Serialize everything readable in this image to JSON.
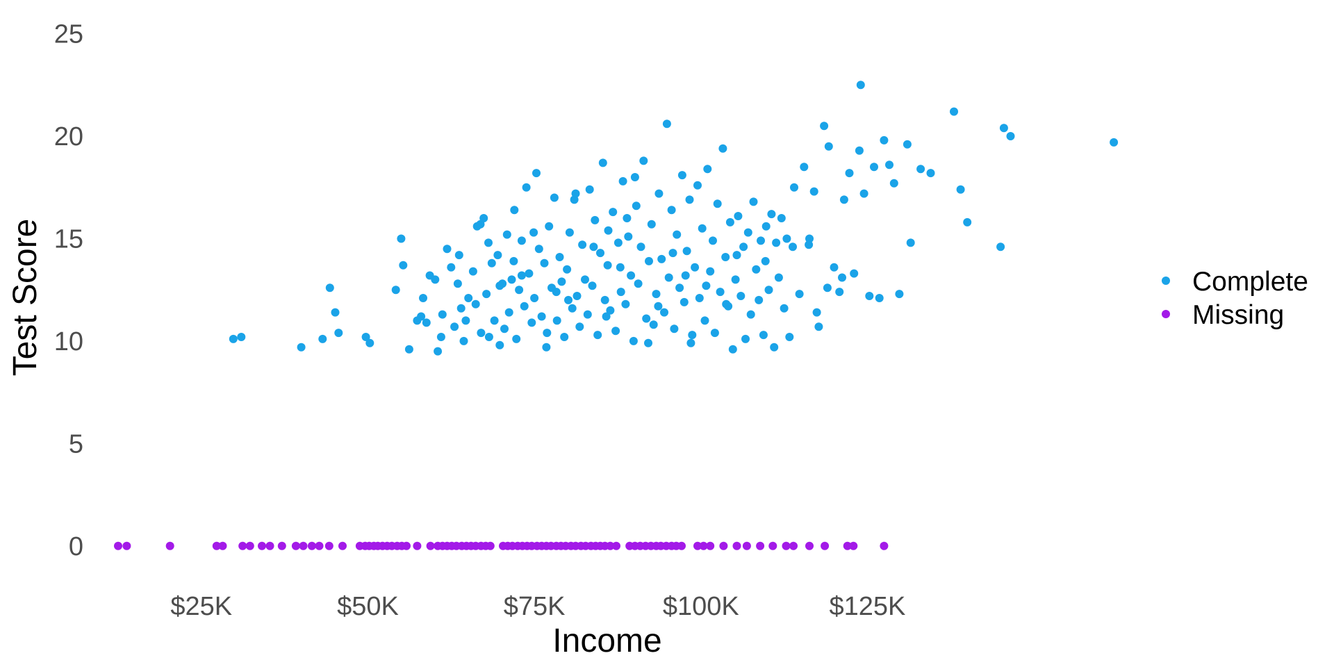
{
  "chart_data": {
    "type": "scatter",
    "title": "",
    "xlabel": "Income",
    "ylabel": "Test Score",
    "xlim": [
      10000,
      155000
    ],
    "ylim": [
      -1.5,
      25.8
    ],
    "x_ticks": [
      {
        "value": 25000,
        "label": "$25K"
      },
      {
        "value": 50000,
        "label": "$50K"
      },
      {
        "value": 75000,
        "label": "$75K"
      },
      {
        "value": 100000,
        "label": "$100K"
      },
      {
        "value": 125000,
        "label": "$125K"
      }
    ],
    "y_ticks": [
      {
        "value": 0,
        "label": "0"
      },
      {
        "value": 5,
        "label": "5"
      },
      {
        "value": 10,
        "label": "10"
      },
      {
        "value": 15,
        "label": "15"
      },
      {
        "value": 20,
        "label": "20"
      },
      {
        "value": 25,
        "label": "25"
      }
    ],
    "grid": false,
    "legend_position": "right",
    "series": [
      {
        "name": "Complete",
        "color": "#1aa3e8",
        "points": [
          [
            29800,
            10.1
          ],
          [
            31000,
            10.2
          ],
          [
            40000,
            9.7
          ],
          [
            43200,
            10.1
          ],
          [
            45600,
            10.4
          ],
          [
            44300,
            12.6
          ],
          [
            45100,
            11.4
          ],
          [
            49700,
            10.2
          ],
          [
            50300,
            9.9
          ],
          [
            54200,
            12.5
          ],
          [
            55000,
            15.0
          ],
          [
            55300,
            13.7
          ],
          [
            58000,
            11.2
          ],
          [
            58800,
            10.9
          ],
          [
            59300,
            13.2
          ],
          [
            60500,
            9.5
          ],
          [
            61200,
            11.3
          ],
          [
            61900,
            14.5
          ],
          [
            62500,
            13.6
          ],
          [
            63000,
            10.7
          ],
          [
            63500,
            12.8
          ],
          [
            63700,
            14.2
          ],
          [
            64000,
            11.6
          ],
          [
            64400,
            10.0
          ],
          [
            65100,
            12.1
          ],
          [
            65800,
            13.4
          ],
          [
            66200,
            11.8
          ],
          [
            66900,
            15.7
          ],
          [
            67000,
            10.4
          ],
          [
            67400,
            16.0
          ],
          [
            67800,
            12.3
          ],
          [
            68200,
            10.2
          ],
          [
            68600,
            13.8
          ],
          [
            69000,
            11.0
          ],
          [
            69500,
            14.2
          ],
          [
            69800,
            9.8
          ],
          [
            70200,
            12.8
          ],
          [
            70500,
            10.6
          ],
          [
            70900,
            15.2
          ],
          [
            71200,
            11.4
          ],
          [
            71600,
            13.0
          ],
          [
            72000,
            16.4
          ],
          [
            72300,
            10.1
          ],
          [
            72700,
            12.5
          ],
          [
            73100,
            14.9
          ],
          [
            73500,
            11.7
          ],
          [
            73800,
            17.5
          ],
          [
            74200,
            13.3
          ],
          [
            74600,
            10.9
          ],
          [
            75000,
            12.1
          ],
          [
            75300,
            18.2
          ],
          [
            75700,
            14.5
          ],
          [
            76100,
            11.2
          ],
          [
            76500,
            13.8
          ],
          [
            76900,
            10.4
          ],
          [
            77200,
            15.6
          ],
          [
            77600,
            12.6
          ],
          [
            78000,
            17.0
          ],
          [
            78400,
            11.0
          ],
          [
            78800,
            14.1
          ],
          [
            79100,
            12.9
          ],
          [
            79500,
            10.2
          ],
          [
            79900,
            13.5
          ],
          [
            80300,
            15.3
          ],
          [
            80700,
            11.6
          ],
          [
            81000,
            16.9
          ],
          [
            81400,
            12.2
          ],
          [
            81800,
            10.7
          ],
          [
            82200,
            14.7
          ],
          [
            82600,
            13.0
          ],
          [
            83000,
            11.3
          ],
          [
            83300,
            17.4
          ],
          [
            83700,
            12.7
          ],
          [
            84100,
            15.9
          ],
          [
            84500,
            10.3
          ],
          [
            84900,
            14.3
          ],
          [
            85300,
            18.7
          ],
          [
            85600,
            12.0
          ],
          [
            86000,
            13.7
          ],
          [
            86400,
            11.5
          ],
          [
            86800,
            16.3
          ],
          [
            87200,
            10.5
          ],
          [
            87600,
            14.8
          ],
          [
            88000,
            12.4
          ],
          [
            88300,
            17.8
          ],
          [
            88700,
            11.8
          ],
          [
            89100,
            15.1
          ],
          [
            89500,
            13.2
          ],
          [
            89900,
            10.0
          ],
          [
            90300,
            16.6
          ],
          [
            90600,
            12.8
          ],
          [
            91000,
            14.6
          ],
          [
            91400,
            18.8
          ],
          [
            91800,
            11.1
          ],
          [
            92200,
            13.9
          ],
          [
            92600,
            15.7
          ],
          [
            92900,
            10.8
          ],
          [
            93300,
            12.3
          ],
          [
            93700,
            17.2
          ],
          [
            94100,
            14.0
          ],
          [
            94500,
            11.4
          ],
          [
            94900,
            20.6
          ],
          [
            95200,
            13.1
          ],
          [
            95600,
            16.4
          ],
          [
            96000,
            10.6
          ],
          [
            96400,
            15.2
          ],
          [
            96800,
            12.6
          ],
          [
            97200,
            18.1
          ],
          [
            97500,
            11.9
          ],
          [
            97900,
            14.4
          ],
          [
            98300,
            16.9
          ],
          [
            98700,
            10.3
          ],
          [
            99100,
            13.6
          ],
          [
            99500,
            17.6
          ],
          [
            99800,
            12.1
          ],
          [
            100200,
            15.5
          ],
          [
            100600,
            11.0
          ],
          [
            101000,
            18.4
          ],
          [
            101400,
            13.4
          ],
          [
            101800,
            14.9
          ],
          [
            102100,
            10.4
          ],
          [
            102500,
            16.7
          ],
          [
            102900,
            12.4
          ],
          [
            103300,
            19.4
          ],
          [
            103700,
            14.1
          ],
          [
            104100,
            11.7
          ],
          [
            104400,
            15.8
          ],
          [
            104800,
            9.6
          ],
          [
            105200,
            13.0
          ],
          [
            105600,
            16.1
          ],
          [
            106000,
            12.2
          ],
          [
            106400,
            14.6
          ],
          [
            106700,
            10.1
          ],
          [
            107100,
            15.3
          ],
          [
            107500,
            11.3
          ],
          [
            107900,
            16.8
          ],
          [
            108300,
            13.5
          ],
          [
            108700,
            12.0
          ],
          [
            109000,
            14.9
          ],
          [
            109400,
            10.3
          ],
          [
            109800,
            15.6
          ],
          [
            110200,
            12.5
          ],
          [
            110600,
            16.2
          ],
          [
            111000,
            9.7
          ],
          [
            111300,
            14.8
          ],
          [
            111700,
            13.1
          ],
          [
            112100,
            16.0
          ],
          [
            112500,
            11.6
          ],
          [
            112900,
            15.0
          ],
          [
            113300,
            10.2
          ],
          [
            114000,
            17.5
          ],
          [
            114800,
            12.3
          ],
          [
            115500,
            18.5
          ],
          [
            116200,
            14.7
          ],
          [
            117000,
            17.3
          ],
          [
            117700,
            10.7
          ],
          [
            118500,
            20.5
          ],
          [
            119200,
            19.5
          ],
          [
            120000,
            13.6
          ],
          [
            120800,
            12.4
          ],
          [
            121500,
            16.9
          ],
          [
            122300,
            18.2
          ],
          [
            123000,
            13.3
          ],
          [
            123800,
            19.3
          ],
          [
            124500,
            17.2
          ],
          [
            125300,
            12.2
          ],
          [
            126000,
            18.5
          ],
          [
            126800,
            12.1
          ],
          [
            127500,
            19.8
          ],
          [
            128300,
            18.6
          ],
          [
            129000,
            17.7
          ],
          [
            129800,
            12.3
          ],
          [
            131000,
            19.6
          ],
          [
            133000,
            18.4
          ],
          [
            134500,
            18.2
          ],
          [
            138000,
            21.2
          ],
          [
            139000,
            17.4
          ],
          [
            140000,
            15.8
          ],
          [
            145000,
            14.6
          ],
          [
            145500,
            20.4
          ],
          [
            146500,
            20.0
          ],
          [
            124000,
            22.5
          ],
          [
            162000,
            19.7
          ],
          [
            131500,
            14.8
          ],
          [
            117400,
            11.4
          ],
          [
            119000,
            12.6
          ],
          [
            116300,
            15.0
          ],
          [
            113800,
            14.6
          ],
          [
            121200,
            13.1
          ],
          [
            98500,
            9.9
          ],
          [
            66400,
            15.6
          ],
          [
            81200,
            17.2
          ],
          [
            90100,
            18.0
          ],
          [
            85800,
            11.2
          ],
          [
            76800,
            9.7
          ],
          [
            92100,
            9.9
          ],
          [
            71900,
            13.9
          ],
          [
            78300,
            12.4
          ],
          [
            87900,
            13.6
          ],
          [
            95800,
            14.3
          ],
          [
            103800,
            11.8
          ],
          [
            64700,
            11.0
          ],
          [
            69800,
            12.7
          ],
          [
            74900,
            15.3
          ],
          [
            83900,
            14.6
          ],
          [
            88900,
            16.0
          ],
          [
            97700,
            13.2
          ],
          [
            100800,
            12.7
          ],
          [
            61000,
            10.2
          ],
          [
            58300,
            12.1
          ],
          [
            57400,
            11.0
          ],
          [
            56200,
            9.6
          ],
          [
            60100,
            13.0
          ],
          [
            68100,
            14.8
          ],
          [
            73100,
            13.2
          ],
          [
            80100,
            12.0
          ],
          [
            86100,
            15.4
          ],
          [
            93600,
            11.7
          ],
          [
            105400,
            14.2
          ],
          [
            109700,
            13.9
          ]
        ]
      },
      {
        "name": "Missing",
        "color": "#a31ae8",
        "points": [
          [
            12500,
            0
          ],
          [
            13800,
            0
          ],
          [
            20300,
            0
          ],
          [
            27300,
            0
          ],
          [
            28200,
            0
          ],
          [
            31200,
            0
          ],
          [
            32300,
            0
          ],
          [
            34100,
            0
          ],
          [
            35300,
            0
          ],
          [
            37100,
            0
          ],
          [
            39200,
            0
          ],
          [
            40300,
            0
          ],
          [
            41600,
            0
          ],
          [
            42700,
            0
          ],
          [
            44200,
            0
          ],
          [
            46200,
            0
          ],
          [
            48800,
            0
          ],
          [
            49600,
            0
          ],
          [
            50200,
            0
          ],
          [
            50900,
            0
          ],
          [
            51500,
            0
          ],
          [
            52200,
            0
          ],
          [
            52900,
            0
          ],
          [
            53600,
            0
          ],
          [
            54400,
            0
          ],
          [
            55100,
            0
          ],
          [
            55800,
            0
          ],
          [
            57400,
            0
          ],
          [
            59400,
            0
          ],
          [
            60500,
            0
          ],
          [
            61200,
            0
          ],
          [
            61900,
            0
          ],
          [
            62600,
            0
          ],
          [
            63300,
            0
          ],
          [
            64100,
            0
          ],
          [
            64800,
            0
          ],
          [
            65500,
            0
          ],
          [
            66200,
            0
          ],
          [
            67000,
            0
          ],
          [
            67700,
            0
          ],
          [
            68400,
            0
          ],
          [
            70300,
            0
          ],
          [
            71000,
            0
          ],
          [
            71700,
            0
          ],
          [
            72500,
            0
          ],
          [
            73200,
            0
          ],
          [
            73900,
            0
          ],
          [
            74600,
            0
          ],
          [
            75400,
            0
          ],
          [
            76100,
            0
          ],
          [
            76800,
            0
          ],
          [
            77500,
            0
          ],
          [
            78300,
            0
          ],
          [
            79000,
            0
          ],
          [
            79700,
            0
          ],
          [
            80500,
            0
          ],
          [
            81200,
            0
          ],
          [
            82000,
            0
          ],
          [
            82700,
            0
          ],
          [
            83500,
            0
          ],
          [
            84200,
            0
          ],
          [
            84900,
            0
          ],
          [
            85600,
            0
          ],
          [
            86400,
            0
          ],
          [
            87300,
            0
          ],
          [
            89300,
            0
          ],
          [
            90100,
            0
          ],
          [
            90900,
            0
          ],
          [
            91700,
            0
          ],
          [
            92500,
            0
          ],
          [
            93300,
            0
          ],
          [
            94000,
            0
          ],
          [
            94800,
            0
          ],
          [
            95600,
            0
          ],
          [
            96300,
            0
          ],
          [
            97100,
            0
          ],
          [
            99500,
            0
          ],
          [
            100400,
            0
          ],
          [
            101400,
            0
          ],
          [
            103400,
            0
          ],
          [
            105400,
            0
          ],
          [
            106900,
            0
          ],
          [
            108900,
            0
          ],
          [
            110800,
            0
          ],
          [
            112800,
            0
          ],
          [
            113900,
            0
          ],
          [
            116300,
            0
          ],
          [
            118600,
            0
          ],
          [
            122000,
            0
          ],
          [
            122900,
            0
          ],
          [
            127500,
            0
          ]
        ]
      }
    ]
  }
}
